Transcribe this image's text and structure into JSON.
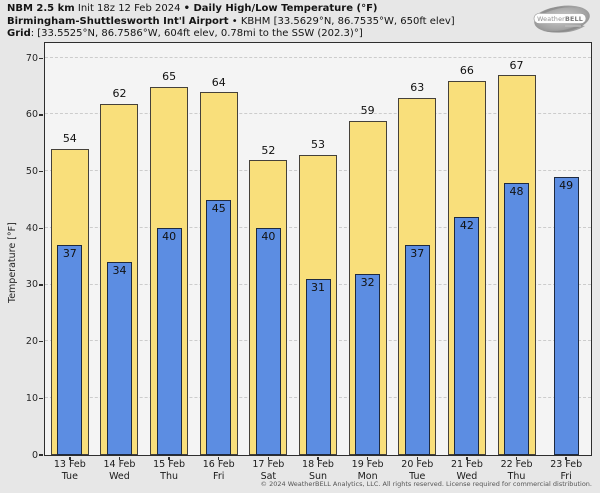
{
  "header": {
    "product": "NBM 2.5 km",
    "init": " Init 18z 12 Feb 2024 ",
    "title": "• Daily High/Low Temperature (°F)",
    "station": "Birmingham-Shuttlesworth Int'l Airport",
    "station_rest": " • KBHM [33.5629°N, 86.7535°W, 650ft elev]",
    "grid_label": "Grid",
    "grid_rest": ": [33.5525°N, 86.7586°W, 604ft elev, 0.78mi to the SSW (202.3)°]"
  },
  "logo": {
    "brand_weather": "Weather",
    "brand_bell": "BELL"
  },
  "chart_data": {
    "type": "bar",
    "title": "NBM 2.5 km Init 18z 12 Feb 2024 • Daily High/Low Temperature (°F)",
    "ylabel": "Temperature [°F]",
    "ylim": [
      0,
      72.7
    ],
    "yticks": [
      0,
      10,
      20,
      30,
      40,
      50,
      60,
      70
    ],
    "grid": true,
    "legend_position": "none",
    "categories": [
      {
        "date": "13 Feb",
        "dow": "Tue"
      },
      {
        "date": "14 Feb",
        "dow": "Wed"
      },
      {
        "date": "15 Feb",
        "dow": "Thu"
      },
      {
        "date": "16 Feb",
        "dow": "Fri"
      },
      {
        "date": "17 Feb",
        "dow": "Sat"
      },
      {
        "date": "18 Feb",
        "dow": "Sun"
      },
      {
        "date": "19 Feb",
        "dow": "Mon"
      },
      {
        "date": "20 Feb",
        "dow": "Tue"
      },
      {
        "date": "21 Feb",
        "dow": "Wed"
      },
      {
        "date": "22 Feb",
        "dow": "Thu"
      },
      {
        "date": "23 Feb",
        "dow": "Fri"
      }
    ],
    "series": [
      {
        "name": "Daily High",
        "color": "#F9DF7B",
        "border": "#45413A",
        "values": [
          54,
          62,
          65,
          64,
          52,
          53,
          59,
          63,
          66,
          67,
          null
        ]
      },
      {
        "name": "Daily Low",
        "color": "#5C8DE2",
        "border": "#1E2A40",
        "values": [
          37,
          34,
          40,
          45,
          40,
          31,
          32,
          37,
          42,
          48,
          49
        ]
      }
    ]
  },
  "footer": {
    "copyright": "© 2024 WeatherBELL Analytics, LLC. All rights reserved. License required for commercial distribution."
  }
}
